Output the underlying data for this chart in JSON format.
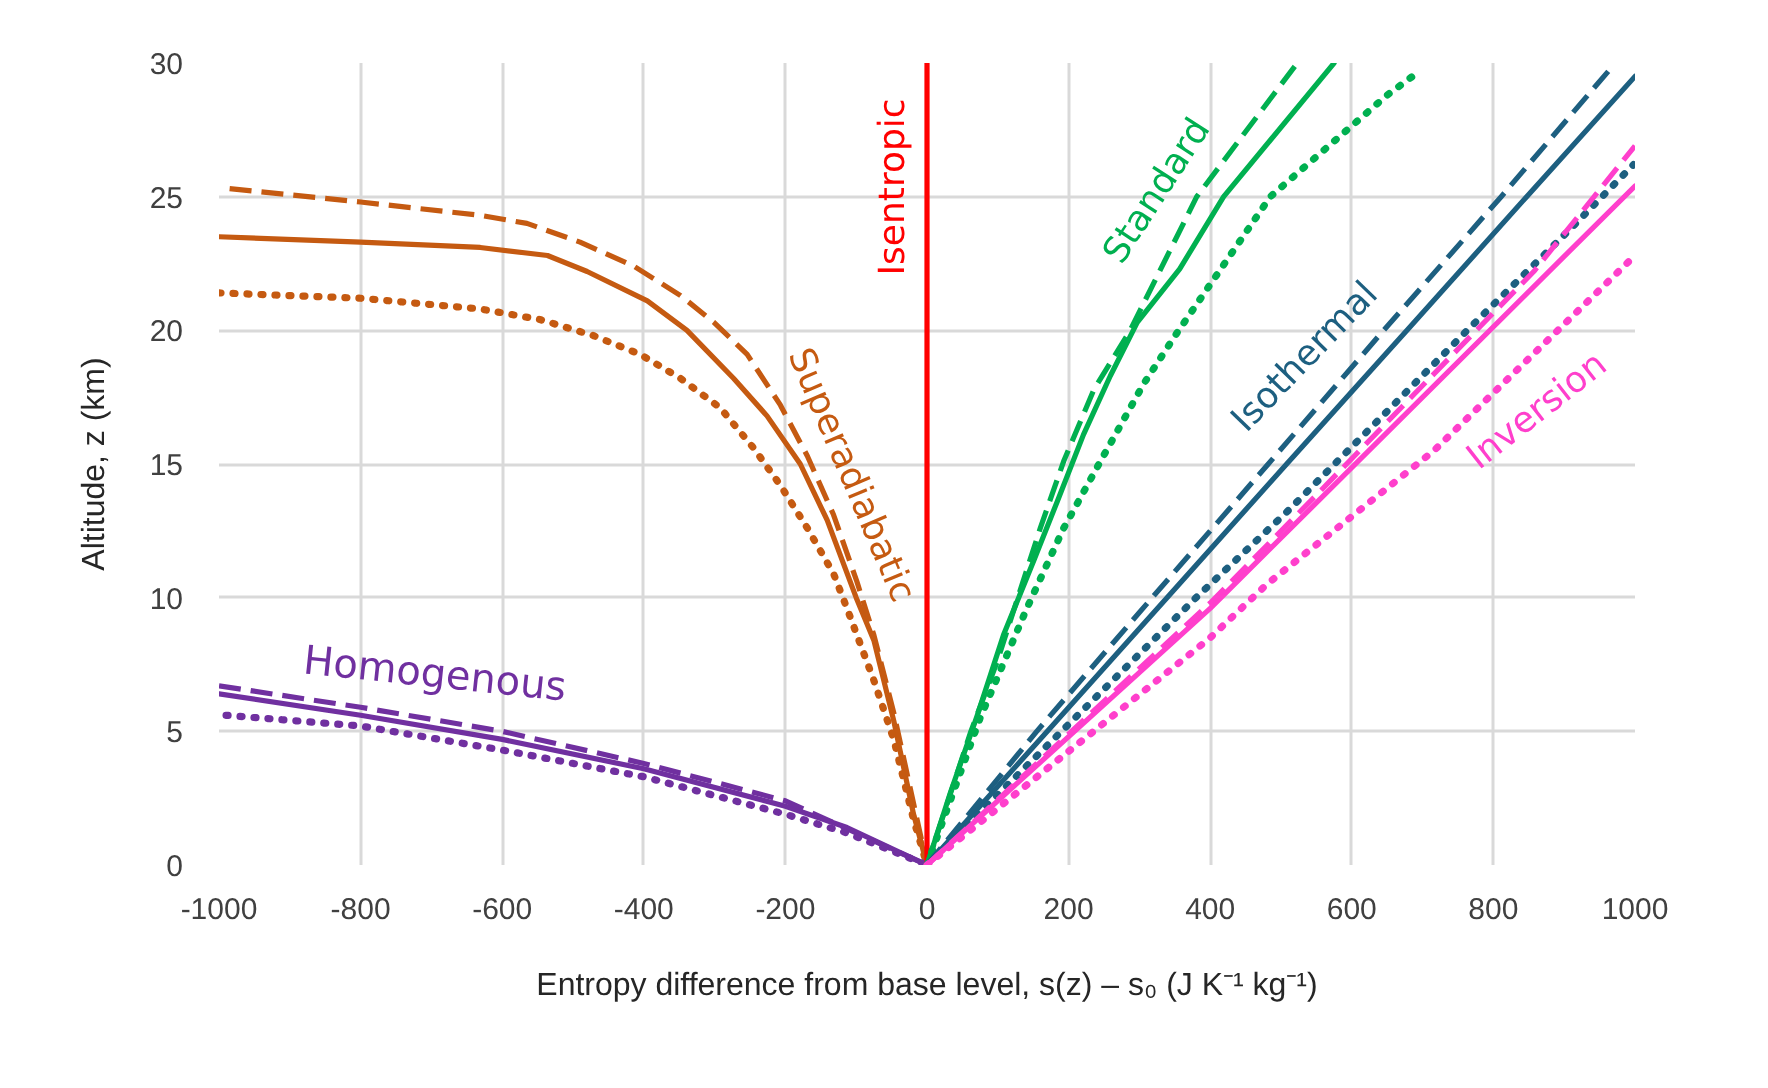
{
  "chart_data": {
    "type": "line",
    "xlabel": "Entropy difference from base level, s(z) – s₀ (J K⁻¹ kg⁻¹)",
    "ylabel": "Altitude, z (km)",
    "xlim": [
      -1000,
      1000
    ],
    "ylim": [
      0,
      30
    ],
    "xticks": [
      -1000,
      -800,
      -600,
      -400,
      -200,
      0,
      200,
      400,
      600,
      800,
      1000
    ],
    "yticks": [
      0,
      5,
      10,
      15,
      20,
      25,
      30
    ],
    "grid": true,
    "series": [
      {
        "name": "Superadiabatic",
        "color": "#c55a11",
        "line_style": "solid",
        "x": [
          -1000,
          -800,
          -631,
          -536,
          -480,
          -395,
          -339,
          -273,
          -226,
          -179,
          -141,
          -100,
          -75,
          -47,
          -19,
          0
        ],
        "values": [
          23.5,
          23.3,
          23.1,
          22.8,
          22.2,
          21.1,
          20.0,
          18.2,
          16.8,
          15.0,
          12.9,
          10.0,
          8.4,
          5.4,
          1.9,
          0
        ]
      },
      {
        "color": "#c55a11",
        "line_style": "dashed",
        "x": [
          -985,
          -800,
          -631,
          -565,
          -490,
          -414,
          -348,
          -301,
          -254,
          -207,
          -169,
          -132,
          -99,
          -75,
          -47,
          0
        ],
        "values": [
          25.3,
          24.8,
          24.3,
          24.0,
          23.3,
          22.4,
          21.3,
          20.3,
          19.1,
          17.2,
          15.3,
          13.1,
          10.6,
          8.6,
          5.7,
          0
        ]
      },
      {
        "color": "#c55a11",
        "line_style": "dotted",
        "x": [
          -1000,
          -800,
          -631,
          -546,
          -471,
          -405,
          -348,
          -292,
          -245,
          -207,
          -169,
          -132,
          -113,
          -75,
          -47,
          -19,
          0
        ],
        "values": [
          21.4,
          21.2,
          20.8,
          20.4,
          19.8,
          19.1,
          18.2,
          17.1,
          15.6,
          14.2,
          12.6,
          10.9,
          9.6,
          6.9,
          4.7,
          1.7,
          0
        ]
      },
      {
        "name": "Homogenous",
        "color": "#7030a0",
        "line_style": "solid",
        "x": [
          -1000,
          -800,
          -600,
          -400,
          -200,
          -113,
          0
        ],
        "values": [
          6.4,
          5.6,
          4.7,
          3.6,
          2.2,
          1.4,
          0
        ]
      },
      {
        "color": "#7030a0",
        "line_style": "dashed",
        "x": [
          -1000,
          -800,
          -600,
          -400,
          -200,
          0
        ],
        "values": [
          6.7,
          5.9,
          5.0,
          3.8,
          2.4,
          0
        ]
      },
      {
        "color": "#7030a0",
        "line_style": "dotted",
        "x": [
          -990,
          -800,
          -600,
          -400,
          -200,
          -113,
          0
        ],
        "values": [
          5.6,
          5.2,
          4.3,
          3.3,
          1.9,
          1.2,
          0
        ]
      },
      {
        "name": "Isentropic",
        "color": "#ff0000",
        "line_style": "solid",
        "x": [
          0,
          0
        ],
        "values": [
          0,
          30
        ]
      },
      {
        "name": "Standard",
        "color": "#00b050",
        "line_style": "solid",
        "x": [
          0,
          33,
          71,
          108,
          151,
          184,
          221,
          259,
          297,
          357,
          419,
          575
        ],
        "values": [
          0,
          2.7,
          5.6,
          8.6,
          11.4,
          13.6,
          16.1,
          18.3,
          20.3,
          22.3,
          25,
          30
        ]
      },
      {
        "color": "#00b050",
        "line_style": "dashed",
        "x": [
          0,
          62,
          99,
          160,
          193,
          236,
          287,
          381,
          523
        ],
        "values": [
          0,
          5,
          7.6,
          12.6,
          15.1,
          17.8,
          20,
          25,
          30
        ]
      },
      {
        "color": "#00b050",
        "line_style": "dotted",
        "x": [
          0,
          75,
          141,
          193,
          245,
          306,
          353,
          485,
          650,
          696
        ],
        "values": [
          0,
          5.5,
          9.6,
          12.6,
          15.1,
          18.0,
          19.9,
          25,
          28.8,
          29.7
        ]
      },
      {
        "name": "Isothermal",
        "color": "#1d5f80",
        "line_style": "solid",
        "x": [
          0,
          170,
          339,
          508,
          678,
          847,
          1000
        ],
        "values": [
          0,
          5,
          10,
          15,
          20,
          25,
          29.5
        ]
      },
      {
        "color": "#1d5f80",
        "line_style": "dashed",
        "x": [
          0,
          155,
          318,
          482,
          645,
          811,
          969
        ],
        "values": [
          0,
          5,
          10,
          15,
          20,
          25,
          29.9
        ]
      },
      {
        "color": "#1d5f80",
        "line_style": "dotted",
        "x": [
          0,
          190,
          380,
          508,
          636,
          763,
          909,
          998
        ],
        "values": [
          0,
          5,
          10,
          13.2,
          16.6,
          20.0,
          23.8,
          26.2
        ]
      },
      {
        "name": "Inversion",
        "color": "#ff3fcc",
        "line_style": "solid",
        "x": [
          0,
          400,
          1000
        ],
        "values": [
          0,
          9.6,
          25.4
        ]
      },
      {
        "color": "#ff3fcc",
        "line_style": "dashed",
        "x": [
          0,
          400,
          556,
          706,
          857,
          1000
        ],
        "values": [
          0,
          9.8,
          14.0,
          18.1,
          22.2,
          26.9
        ]
      },
      {
        "color": "#ff3fcc",
        "line_style": "dotted",
        "x": [
          0,
          400,
          480,
          716,
          1000
        ],
        "values": [
          0,
          8.5,
          10.5,
          15.5,
          22.8
        ]
      }
    ]
  }
}
